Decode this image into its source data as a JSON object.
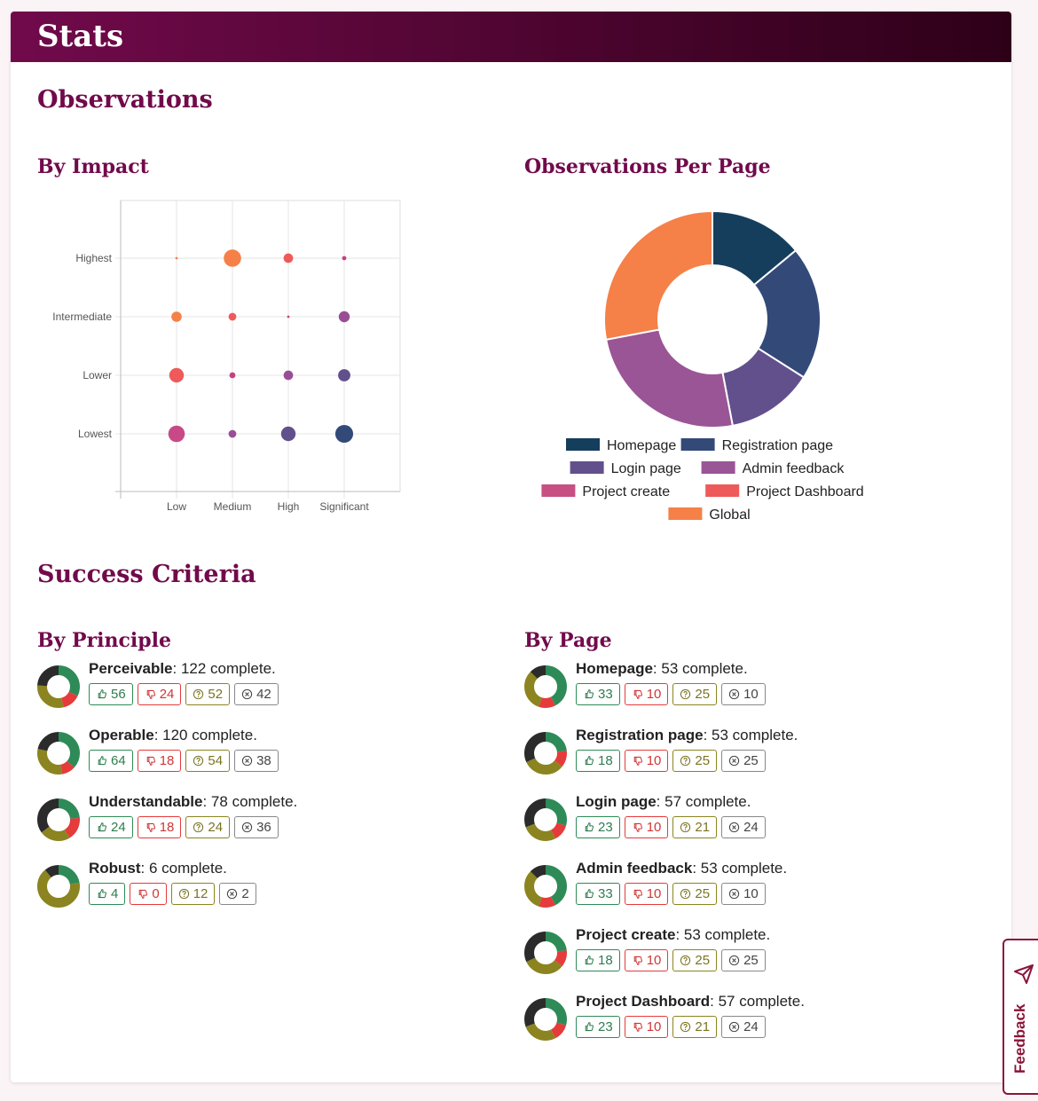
{
  "header": {
    "title": "Stats"
  },
  "observations": {
    "title": "Observations",
    "by_impact": {
      "title": "By Impact"
    },
    "per_page": {
      "title": "Observations Per Page"
    }
  },
  "success_criteria": {
    "title": "Success Criteria",
    "by_principle": {
      "title": "By Principle",
      "items": [
        {
          "name": "Perceivable",
          "suffix": ": 122 complete.",
          "pass": 56,
          "fail": 24,
          "review": 52,
          "na": 42
        },
        {
          "name": "Operable",
          "suffix": ": 120 complete.",
          "pass": 64,
          "fail": 18,
          "review": 54,
          "na": 38
        },
        {
          "name": "Understandable",
          "suffix": ": 78 complete.",
          "pass": 24,
          "fail": 18,
          "review": 24,
          "na": 36
        },
        {
          "name": "Robust",
          "suffix": ": 6 complete.",
          "pass": 4,
          "fail": 0,
          "review": 12,
          "na": 2
        }
      ]
    },
    "by_page": {
      "title": "By Page",
      "items": [
        {
          "name": "Homepage",
          "suffix": ": 53 complete.",
          "pass": 33,
          "fail": 10,
          "review": 25,
          "na": 10
        },
        {
          "name": "Registration page",
          "suffix": ": 53 complete.",
          "pass": 18,
          "fail": 10,
          "review": 25,
          "na": 25
        },
        {
          "name": "Login page",
          "suffix": ": 57 complete.",
          "pass": 23,
          "fail": 10,
          "review": 21,
          "na": 24
        },
        {
          "name": "Admin feedback",
          "suffix": ": 53 complete.",
          "pass": 33,
          "fail": 10,
          "review": 25,
          "na": 10
        },
        {
          "name": "Project create",
          "suffix": ": 53 complete.",
          "pass": 18,
          "fail": 10,
          "review": 25,
          "na": 25
        },
        {
          "name": "Project Dashboard",
          "suffix": ": 57 complete.",
          "pass": 23,
          "fail": 10,
          "review": 21,
          "na": 24
        }
      ]
    }
  },
  "colors": {
    "pass": "#2e8b57",
    "fail": "#e53b3b",
    "review": "#8b8420",
    "na": "#2b2b2b"
  },
  "feedback": {
    "label": "Feedback",
    "icon": "send-icon"
  },
  "chart_data": [
    {
      "type": "scatter",
      "title": "By Impact",
      "x_categories": [
        "Low",
        "Medium",
        "High",
        "Significant"
      ],
      "y_categories": [
        "Lowest",
        "Lower",
        "Intermediate",
        "Highest"
      ],
      "points": [
        {
          "x": "Low",
          "y": "Highest",
          "value": 0.2,
          "color": "#f58048"
        },
        {
          "x": "Medium",
          "y": "Highest",
          "value": 10,
          "color": "#f58048"
        },
        {
          "x": "High",
          "y": "Highest",
          "value": 3,
          "color": "#ee5a5a"
        },
        {
          "x": "Significant",
          "y": "Highest",
          "value": 0.6,
          "color": "#c7407f"
        },
        {
          "x": "Low",
          "y": "Intermediate",
          "value": 3.5,
          "color": "#f58048"
        },
        {
          "x": "Medium",
          "y": "Intermediate",
          "value": 2,
          "color": "#ee5a5a"
        },
        {
          "x": "High",
          "y": "Intermediate",
          "value": 0.2,
          "color": "#c7407f"
        },
        {
          "x": "Significant",
          "y": "Intermediate",
          "value": 4,
          "color": "#9a4d97"
        },
        {
          "x": "Low",
          "y": "Lower",
          "value": 7,
          "color": "#ee5a5a"
        },
        {
          "x": "Medium",
          "y": "Lower",
          "value": 1.2,
          "color": "#c7407f"
        },
        {
          "x": "High",
          "y": "Lower",
          "value": 3,
          "color": "#9a4d97"
        },
        {
          "x": "Significant",
          "y": "Lower",
          "value": 5,
          "color": "#62508d"
        },
        {
          "x": "Low",
          "y": "Lowest",
          "value": 9,
          "color": "#c74a86"
        },
        {
          "x": "Medium",
          "y": "Lowest",
          "value": 2,
          "color": "#9a4d97"
        },
        {
          "x": "High",
          "y": "Lowest",
          "value": 7,
          "color": "#62508d"
        },
        {
          "x": "Significant",
          "y": "Lowest",
          "value": 10.5,
          "color": "#334a79"
        }
      ]
    },
    {
      "type": "pie",
      "title": "Observations Per Page",
      "legend": "bottom",
      "slices": [
        {
          "label": "Homepage",
          "value": 14,
          "color": "#153e5c"
        },
        {
          "label": "Registration page",
          "value": 20,
          "color": "#334a79"
        },
        {
          "label": "Login page",
          "value": 13,
          "color": "#62508d"
        },
        {
          "label": "Admin feedback",
          "value": 25,
          "color": "#9a5596"
        },
        {
          "label": "Project create",
          "value": 0,
          "color": "#c74f83"
        },
        {
          "label": "Project Dashboard",
          "value": 0,
          "color": "#ee5a5a"
        },
        {
          "label": "Global",
          "value": 28,
          "color": "#f58048"
        }
      ]
    }
  ]
}
